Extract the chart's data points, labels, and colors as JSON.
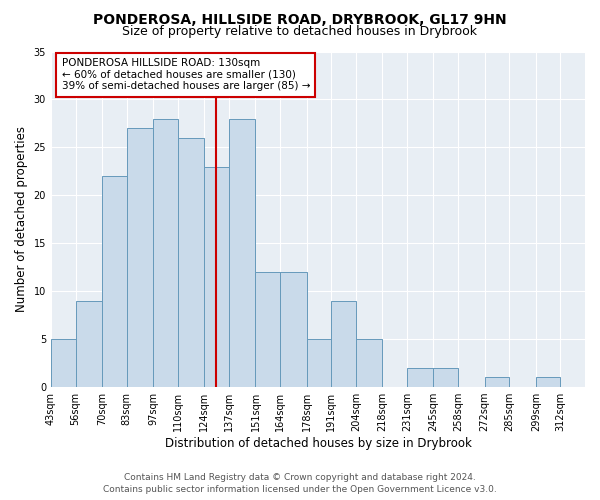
{
  "title": "PONDEROSA, HILLSIDE ROAD, DRYBROOK, GL17 9HN",
  "subtitle": "Size of property relative to detached houses in Drybrook",
  "xlabel": "Distribution of detached houses by size in Drybrook",
  "ylabel": "Number of detached properties",
  "bin_labels": [
    "43sqm",
    "56sqm",
    "70sqm",
    "83sqm",
    "97sqm",
    "110sqm",
    "124sqm",
    "137sqm",
    "151sqm",
    "164sqm",
    "178sqm",
    "191sqm",
    "204sqm",
    "218sqm",
    "231sqm",
    "245sqm",
    "258sqm",
    "272sqm",
    "285sqm",
    "299sqm",
    "312sqm"
  ],
  "bin_edges": [
    43,
    56,
    70,
    83,
    97,
    110,
    124,
    137,
    151,
    164,
    178,
    191,
    204,
    218,
    231,
    245,
    258,
    272,
    285,
    299,
    312
  ],
  "bar_heights": [
    5,
    9,
    22,
    27,
    28,
    26,
    23,
    28,
    12,
    12,
    5,
    9,
    5,
    0,
    2,
    2,
    0,
    1,
    0,
    1,
    0
  ],
  "bar_color": "#c9daea",
  "bar_edge_color": "#6699bb",
  "reference_line_x": 130,
  "reference_line_color": "#cc0000",
  "ylim": [
    0,
    35
  ],
  "yticks": [
    0,
    5,
    10,
    15,
    20,
    25,
    30,
    35
  ],
  "annotation_title": "PONDEROSA HILLSIDE ROAD: 130sqm",
  "annotation_line1": "← 60% of detached houses are smaller (130)",
  "annotation_line2": "39% of semi-detached houses are larger (85) →",
  "annotation_box_color": "#cc0000",
  "footer_line1": "Contains HM Land Registry data © Crown copyright and database right 2024.",
  "footer_line2": "Contains public sector information licensed under the Open Government Licence v3.0.",
  "background_color": "#ffffff",
  "plot_bg_color": "#e8eef4",
  "title_fontsize": 10,
  "subtitle_fontsize": 9,
  "axis_label_fontsize": 8.5,
  "tick_fontsize": 7,
  "footer_fontsize": 6.5,
  "annotation_fontsize": 7.5
}
